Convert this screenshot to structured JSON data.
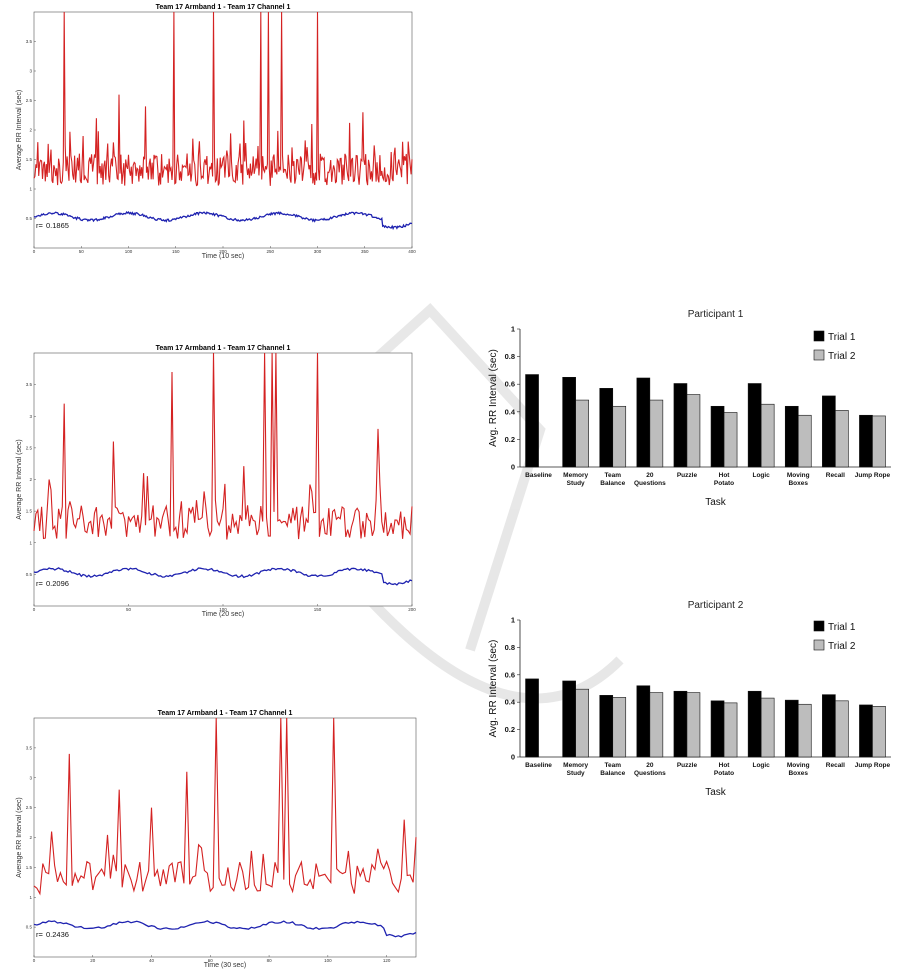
{
  "chart_data": [
    {
      "type": "line",
      "title": "Team 17 Armband 1 - Team 17 Channel 1",
      "xlabel": "Time (10 sec)",
      "ylabel": "Average RR Interval (sec)",
      "xlim": [
        0,
        400
      ],
      "ylim": [
        0,
        4
      ],
      "xticks": [
        "0",
        "50",
        "100",
        "150",
        "200",
        "250",
        "300",
        "350",
        "400"
      ],
      "yticks": [
        "0.5",
        "1",
        "1.5",
        "2",
        "2.5",
        "3",
        "3.5"
      ],
      "r_label": "r=",
      "r_value": "0.1865",
      "seed": 17,
      "n_points": 400,
      "peaks": [
        [
          32,
          4.0
        ],
        [
          66,
          2.2
        ],
        [
          90,
          2.6
        ],
        [
          118,
          2.4
        ],
        [
          148,
          4.0
        ],
        [
          190,
          4.0
        ],
        [
          240,
          4.0
        ],
        [
          248,
          4.0
        ],
        [
          262,
          4.0
        ],
        [
          300,
          4.0
        ],
        [
          348,
          2.3
        ],
        [
          390,
          1.8
        ]
      ],
      "series": [
        {
          "name": "",
          "color": "#d42222"
        },
        {
          "name": "",
          "color": "#1e22b0"
        }
      ]
    },
    {
      "type": "line",
      "title": "Team 17 Armband 1 - Team 17 Channel 1",
      "xlabel": "Time (20 sec)",
      "ylabel": "Average RR Interval (sec)",
      "xlim": [
        0,
        200
      ],
      "ylim": [
        0,
        4
      ],
      "xticks": [
        "0",
        "50",
        "100",
        "150",
        "200"
      ],
      "yticks": [
        "0.5",
        "1",
        "1.5",
        "2",
        "2.5",
        "3",
        "3.5"
      ],
      "r_label": "r=",
      "r_value": "0.2096",
      "seed": 29,
      "n_points": 200,
      "peaks": [
        [
          8,
          2.0
        ],
        [
          16,
          3.2
        ],
        [
          42,
          2.6
        ],
        [
          58,
          2.1
        ],
        [
          73,
          3.7
        ],
        [
          95,
          4.0
        ],
        [
          122,
          4.0
        ],
        [
          126,
          4.0
        ],
        [
          128,
          4.0
        ],
        [
          150,
          4.0
        ],
        [
          182,
          2.8
        ]
      ],
      "series": [
        {
          "name": "",
          "color": "#d42222"
        },
        {
          "name": "",
          "color": "#1e22b0"
        }
      ]
    },
    {
      "type": "line",
      "title": "Team 17 Armband 1 - Team 17 Channel 1",
      "xlabel": "Time (30 sec)",
      "ylabel": "Average RR Interval (sec)",
      "xlim": [
        0,
        130
      ],
      "ylim": [
        0,
        4
      ],
      "xticks": [
        "0",
        "20",
        "40",
        "60",
        "80",
        "100",
        "120"
      ],
      "yticks": [
        "0.5",
        "1",
        "1.5",
        "2",
        "2.5",
        "3",
        "3.5"
      ],
      "r_label": "r=",
      "r_value": "0.2436",
      "seed": 41,
      "n_points": 130,
      "peaks": [
        [
          6,
          2.1
        ],
        [
          12,
          3.4
        ],
        [
          29,
          2.8
        ],
        [
          40,
          2.5
        ],
        [
          52,
          3.1
        ],
        [
          62,
          4.0
        ],
        [
          84,
          4.0
        ],
        [
          86,
          4.0
        ],
        [
          102,
          4.0
        ],
        [
          126,
          2.3
        ]
      ],
      "series": [
        {
          "name": "",
          "color": "#d42222"
        },
        {
          "name": "",
          "color": "#1e22b0"
        }
      ]
    },
    {
      "type": "bar",
      "title": "Participant 1",
      "xlabel": "Task",
      "ylabel": "Avg. RR Interval (sec)",
      "ylim": [
        0,
        1
      ],
      "yticks": [
        "0",
        "0.2",
        "0.4",
        "0.6",
        "0.8",
        "1"
      ],
      "categories": [
        "Baseline",
        "Memory Study",
        "Team Balance",
        "20 Questions",
        "Puzzle",
        "Hot Potato",
        "Logic",
        "Moving Boxes",
        "Recall",
        "Jump Rope"
      ],
      "series": [
        {
          "name": "Trial 1",
          "color": "#000000",
          "values": [
            0.67,
            0.65,
            0.57,
            0.645,
            0.605,
            0.44,
            0.605,
            0.44,
            0.515,
            0.375
          ]
        },
        {
          "name": "Trial 2",
          "color": "#bdbdbd",
          "values": [
            null,
            0.485,
            0.44,
            0.485,
            0.525,
            0.395,
            0.455,
            0.375,
            0.41,
            0.37
          ]
        }
      ]
    },
    {
      "type": "bar",
      "title": "Participant 2",
      "xlabel": "Task",
      "ylabel": "Avg. RR Interval (sec)",
      "ylim": [
        0,
        1
      ],
      "yticks": [
        "0",
        "0.2",
        "0.4",
        "0.6",
        "0.8",
        "1"
      ],
      "categories": [
        "Baseline",
        "Memory Study",
        "Team Balance",
        "20 Questions",
        "Puzzle",
        "Hot Potato",
        "Logic",
        "Moving Boxes",
        "Recall",
        "Jump Rope"
      ],
      "series": [
        {
          "name": "Trial 1",
          "color": "#000000",
          "values": [
            0.57,
            0.555,
            0.45,
            0.52,
            0.48,
            0.41,
            0.48,
            0.415,
            0.455,
            0.38
          ]
        },
        {
          "name": "Trial 2",
          "color": "#bdbdbd",
          "values": [
            null,
            0.495,
            0.435,
            0.47,
            0.47,
            0.395,
            0.43,
            0.385,
            0.41,
            0.37
          ]
        }
      ]
    }
  ]
}
